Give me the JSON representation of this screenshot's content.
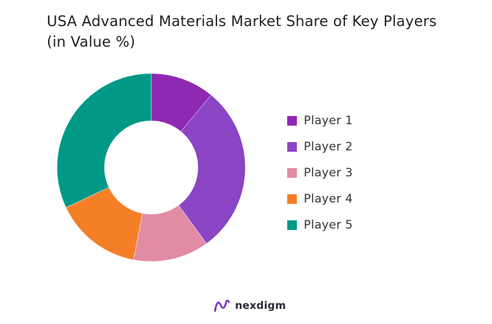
{
  "chart_data": {
    "type": "pie",
    "title_lines": [
      "USA Advanced Materials Market Share of Key Players",
      "(in Value %)"
    ],
    "donut": true,
    "legend_position": "right",
    "categories": [
      "Player 1",
      "Player 2",
      "Player 3",
      "Player 4",
      "Player 5"
    ],
    "values": [
      11,
      29,
      13,
      15,
      32
    ],
    "colors": [
      "#8E2AB1",
      "#8B44C4",
      "#E18CA4",
      "#F47F27",
      "#009986"
    ]
  },
  "footer": {
    "brand": "nexdigm",
    "brand_color": "#2b2b3a",
    "accent_color": "#7B2FBE"
  }
}
